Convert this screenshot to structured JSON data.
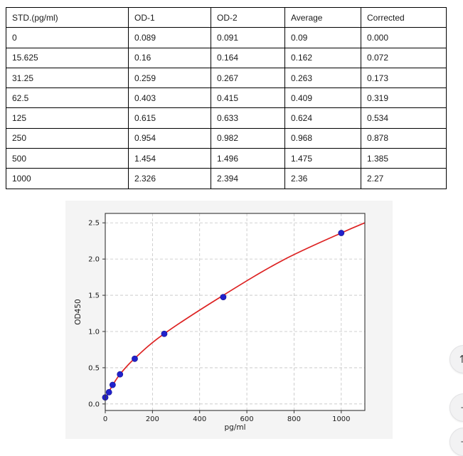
{
  "table": {
    "columns": [
      "STD.(pg/ml)",
      "OD-1",
      "OD-2",
      "Average",
      "Corrected"
    ],
    "rows": [
      [
        "0",
        "0.089",
        "0.091",
        "0.09",
        "0.000"
      ],
      [
        "15.625",
        "0.16",
        "0.164",
        "0.162",
        "0.072"
      ],
      [
        "31.25",
        "0.259",
        "0.267",
        "0.263",
        "0.173"
      ],
      [
        "62.5",
        "0.403",
        "0.415",
        "0.409",
        "0.319"
      ],
      [
        "125",
        "0.615",
        "0.633",
        "0.624",
        "0.534"
      ],
      [
        "250",
        "0.954",
        "0.982",
        "0.968",
        "0.878"
      ],
      [
        "500",
        "1.454",
        "1.496",
        "1.475",
        "1.385"
      ],
      [
        "1000",
        "2.326",
        "2.394",
        "2.36",
        "2.27"
      ]
    ]
  },
  "chart_data": {
    "type": "scatter",
    "title": "",
    "xlabel": "pg/ml",
    "ylabel": "OD450",
    "xlim": [
      0,
      1100
    ],
    "ylim": [
      -0.09,
      2.63
    ],
    "grid": true,
    "x_tick_labels": [
      "0",
      "200",
      "400",
      "600",
      "800",
      "1000"
    ],
    "x_ticks": [
      0,
      200,
      400,
      600,
      800,
      1000
    ],
    "y_tick_labels": [
      "0.0",
      "0.5",
      "1.0",
      "1.5",
      "2.0",
      "2.5"
    ],
    "y_ticks": [
      0,
      0.5,
      1,
      1.5,
      2,
      2.5
    ],
    "points": {
      "x": [
        0,
        15.625,
        31.25,
        62.5,
        125,
        250,
        500,
        1000
      ],
      "y": [
        0.09,
        0.162,
        0.263,
        0.409,
        0.624,
        0.968,
        1.475,
        2.36
      ]
    },
    "fit_curve": {
      "x": [
        0,
        15.625,
        31.25,
        62.5,
        125,
        250,
        500,
        750,
        1000,
        1100
      ],
      "y": [
        0.08,
        0.17,
        0.26,
        0.41,
        0.63,
        0.97,
        1.5,
        1.98,
        2.36,
        2.5
      ]
    },
    "colors": {
      "curve": "#dd2222",
      "point_fill": "#2121cc",
      "point_edge": "#14148f",
      "grid": "#c3c3c3",
      "spine": "#333333",
      "figure_bg": "#f4f4f4",
      "plot_bg": "#ffffff",
      "tick_text": "#1a1a1a"
    }
  },
  "floating_buttons": [
    {
      "id": "fab-sort",
      "glyph": "⇅"
    },
    {
      "id": "fab-minus-1",
      "glyph": "−"
    },
    {
      "id": "fab-minus-2",
      "glyph": "−"
    }
  ]
}
